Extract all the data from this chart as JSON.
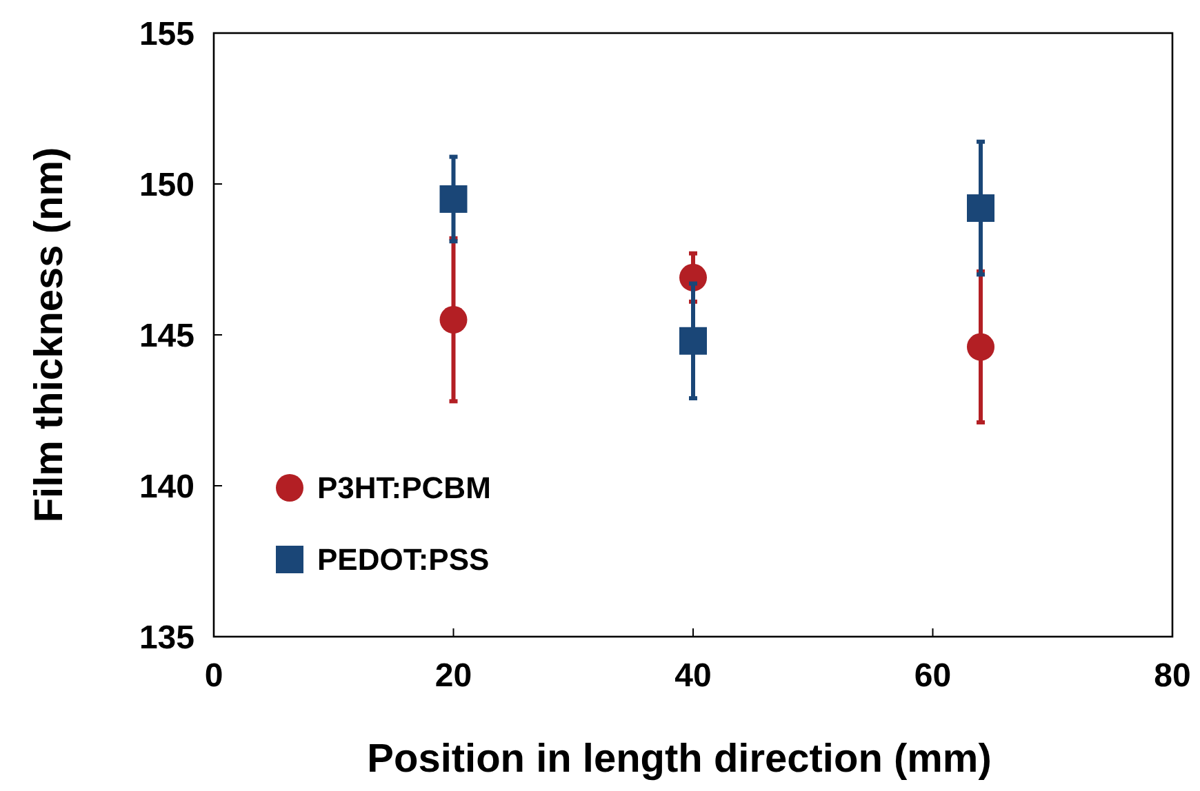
{
  "chart_data": {
    "type": "scatter",
    "xlabel": "Position in length direction (mm)",
    "ylabel": "Film thickness (nm)",
    "xlim": [
      0,
      80
    ],
    "xticks": [
      0,
      20,
      40,
      60,
      80
    ],
    "ylim": [
      135,
      155
    ],
    "yticks": [
      135,
      140,
      145,
      150,
      155
    ],
    "grid": false,
    "legend": "bottom left",
    "series": [
      {
        "name": "P3HT:PCBM",
        "color": "#b31f24",
        "marker": "circle",
        "x": [
          20,
          40,
          64
        ],
        "values": [
          145.5,
          146.9,
          144.6
        ],
        "errors": [
          2.7,
          0.8,
          2.5
        ]
      },
      {
        "name": "PEDOT:PSS",
        "color": "#1a4677",
        "marker": "square",
        "x": [
          20,
          40,
          64
        ],
        "values": [
          149.5,
          144.8,
          149.2
        ],
        "errors": [
          1.4,
          1.9,
          2.2
        ]
      }
    ]
  }
}
